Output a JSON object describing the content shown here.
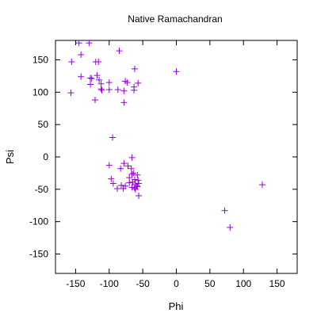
{
  "chart_data": {
    "type": "scatter",
    "title": "Native Ramachandran",
    "xlabel": "Phi",
    "ylabel": "Psi",
    "xlim": [
      -180,
      180
    ],
    "ylim": [
      -180,
      180
    ],
    "xticks": [
      -150,
      -100,
      -50,
      0,
      50,
      100,
      150
    ],
    "yticks": [
      -150,
      -100,
      -50,
      0,
      50,
      100,
      150
    ],
    "grid": false,
    "marker": "plus",
    "marker_color": "#9400d3",
    "series": [
      {
        "points": [
          [
            -145,
            176
          ],
          [
            -130,
            176
          ],
          [
            -142,
            158
          ],
          [
            -156,
            147
          ],
          [
            -120,
            147
          ],
          [
            -116,
            147
          ],
          [
            -85,
            164
          ],
          [
            -62,
            136
          ],
          [
            0,
            132
          ],
          [
            -142,
            124
          ],
          [
            -128,
            122
          ],
          [
            -126,
            121
          ],
          [
            -118,
            126
          ],
          [
            -115,
            119
          ],
          [
            -112,
            113
          ],
          [
            -100,
            115
          ],
          [
            -76,
            117
          ],
          [
            -73,
            115
          ],
          [
            -57,
            114
          ],
          [
            -63,
            108
          ],
          [
            -128,
            112
          ],
          [
            -112,
            105
          ],
          [
            -111,
            103
          ],
          [
            -100,
            104
          ],
          [
            -87,
            104
          ],
          [
            -78,
            102
          ],
          [
            -63,
            103
          ],
          [
            -157,
            99
          ],
          [
            -121,
            88
          ],
          [
            -78,
            84
          ],
          [
            -95,
            30
          ],
          [
            -66,
            -1
          ],
          [
            -78,
            -10
          ],
          [
            -100,
            -13
          ],
          [
            -83,
            -18
          ],
          [
            -72,
            -14
          ],
          [
            -67,
            -18
          ],
          [
            -64,
            -25
          ],
          [
            -66,
            -27
          ],
          [
            -58,
            -28
          ],
          [
            -70,
            -32
          ],
          [
            -62,
            -35
          ],
          [
            -57,
            -36
          ],
          [
            -97,
            -34
          ],
          [
            -94,
            -41
          ],
          [
            -82,
            -44
          ],
          [
            -76,
            -45
          ],
          [
            -70,
            -40
          ],
          [
            -65,
            -39
          ],
          [
            -61,
            -42
          ],
          [
            -56,
            -41
          ],
          [
            -59,
            -45
          ],
          [
            -88,
            -49
          ],
          [
            -79,
            -49
          ],
          [
            -66,
            -47
          ],
          [
            -62,
            -48
          ],
          [
            -58,
            -46
          ],
          [
            -61,
            -50
          ],
          [
            -56,
            -60
          ],
          [
            128,
            -43
          ],
          [
            72,
            -83
          ],
          [
            80,
            -109
          ]
        ]
      }
    ]
  }
}
